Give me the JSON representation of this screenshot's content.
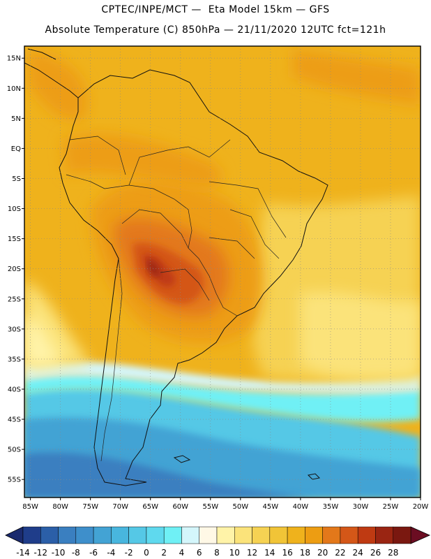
{
  "header": {
    "line1": "CPTEC/INPE/MCT —  Eta Model 15km — GFS",
    "line2": "Absolute Temperature (C) 850hPa — 21/11/2020 12UTC fct=121h"
  },
  "map": {
    "lat_labels": [
      "15N",
      "10N",
      "5N",
      "EQ",
      "5S",
      "10S",
      "15S",
      "20S",
      "25S",
      "30S",
      "35S",
      "40S",
      "45S",
      "50S",
      "55S"
    ],
    "lon_labels": [
      "85W",
      "80W",
      "75W",
      "70W",
      "65W",
      "60W",
      "55W",
      "50W",
      "45W",
      "40W",
      "35W",
      "30W",
      "25W",
      "20W"
    ],
    "lat_values": [
      15,
      10,
      5,
      0,
      -5,
      -10,
      -15,
      -20,
      -25,
      -30,
      -35,
      -40,
      -45,
      -50,
      -55
    ],
    "lon_values": [
      -85,
      -80,
      -75,
      -70,
      -65,
      -60,
      -55,
      -50,
      -45,
      -40,
      -35,
      -30,
      -25,
      -20
    ],
    "extent": {
      "lon_min": -86,
      "lon_max": -20,
      "lat_min": -58,
      "lat_max": 17
    }
  },
  "colorbar": {
    "labels": [
      "-14",
      "-12",
      "-10",
      "-8",
      "-6",
      "-4",
      "-2",
      "0",
      "2",
      "4",
      "6",
      "8",
      "10",
      "12",
      "14",
      "16",
      "18",
      "20",
      "22",
      "24",
      "26",
      "28"
    ],
    "colors": [
      "#1f3d8a",
      "#2b5fa8",
      "#3a7fc0",
      "#3e8fcb",
      "#43a3d4",
      "#48b6de",
      "#55c8e6",
      "#5fd9ee",
      "#6ff0f5",
      "#d4f6fb",
      "#fff8e6",
      "#fff3a8",
      "#fbe37a",
      "#f6d253",
      "#f1c437",
      "#efb21c",
      "#ed9d12",
      "#e3781a",
      "#d45718",
      "#bf3a12",
      "#9a2512",
      "#7a1810"
    ],
    "low_arrow_color": "#1a2a6e",
    "high_arrow_color": "#6b0d22"
  }
}
